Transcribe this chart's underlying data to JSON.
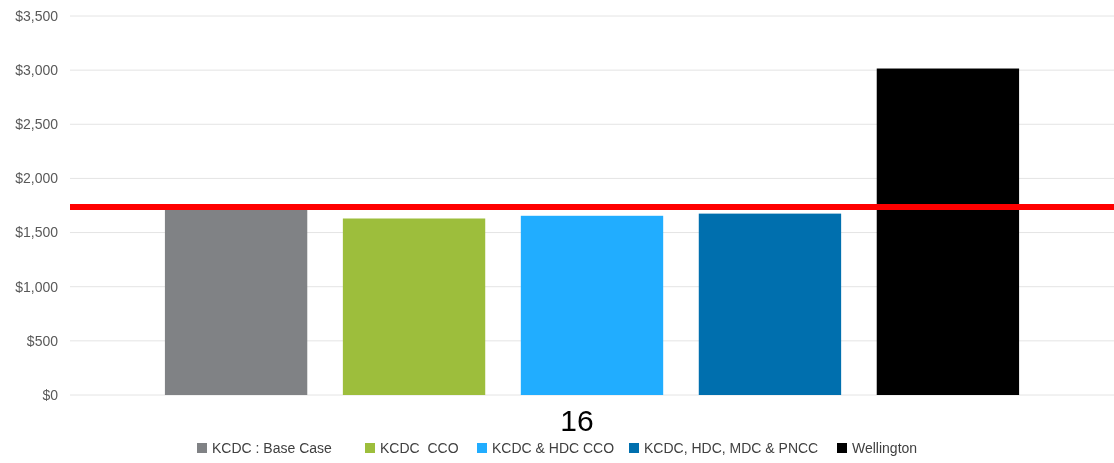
{
  "chart_data": {
    "type": "bar",
    "categories": [
      null
    ],
    "series": [
      {
        "name": "KCDC : Base Case",
        "color": "#808285",
        "values": [
          1710
        ]
      },
      {
        "name": "KCDC  CCO",
        "color": "#9dbe3c",
        "values": [
          1630
        ]
      },
      {
        "name": "KCDC & HDC CCO",
        "color": "#21adff",
        "values": [
          1655
        ]
      },
      {
        "name": "KCDC, HDC, MDC & PNCC",
        "color": "#006fae",
        "values": [
          1675
        ]
      },
      {
        "name": "Wellington",
        "color": "#000000",
        "values": [
          3015
        ]
      }
    ],
    "ylim": [
      0,
      3500
    ],
    "yticks": [
      {
        "value": 0,
        "label": "$0"
      },
      {
        "value": 500,
        "label": "$500"
      },
      {
        "value": 1000,
        "label": "$1,000"
      },
      {
        "value": 1500,
        "label": "$1,500"
      },
      {
        "value": 2000,
        "label": "$2,000"
      },
      {
        "value": 2500,
        "label": "$2,500"
      },
      {
        "value": 3000,
        "label": "$3,000"
      },
      {
        "value": 3500,
        "label": "$3,500"
      }
    ],
    "grid": "y",
    "legend": "bottom",
    "ref_lines": [
      {
        "axis": "y",
        "value": 1735,
        "color": "#ff0000"
      }
    ],
    "annotations": [
      "16"
    ]
  }
}
